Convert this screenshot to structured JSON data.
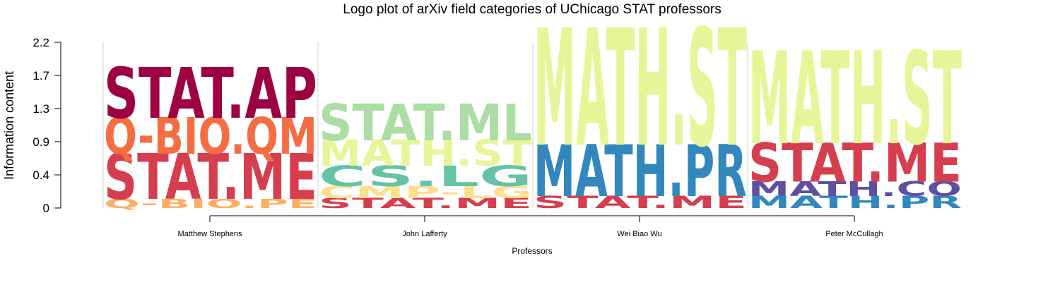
{
  "chart_data": {
    "type": "logo",
    "title": "Logo plot of arXiv field categories of UChicago STAT professors",
    "xlabel": "Professors",
    "ylabel": "Information content",
    "ylim": [
      0,
      2.2
    ],
    "yticks": [
      "0",
      "0.4",
      "0.9",
      "1.3",
      "1.7",
      "2.2"
    ],
    "ytick_values": [
      0,
      0.44,
      0.88,
      1.32,
      1.76,
      2.2
    ],
    "categories": [
      "Matthew Stephens",
      "John Lafferty",
      "Wei Biao Wu",
      "Peter McCullagh"
    ],
    "stacks": [
      [
        {
          "label": "Q-BIO.PE",
          "value": 0.12,
          "color": "#FDAE61"
        },
        {
          "label": "STAT.ME",
          "value": 0.6,
          "color": "#D53E4F"
        },
        {
          "label": "Q-BIO.QM",
          "value": 0.48,
          "color": "#F46D43"
        },
        {
          "label": "STAT.AP",
          "value": 0.67,
          "color": "#9E0142"
        }
      ],
      [
        {
          "label": "STAT.ME",
          "value": 0.13,
          "color": "#D53E4F"
        },
        {
          "label": "CMP-LG",
          "value": 0.16,
          "color": "#FEE08B"
        },
        {
          "label": "CS.LG",
          "value": 0.27,
          "color": "#66C2A5"
        },
        {
          "label": "MATH.ST",
          "value": 0.34,
          "color": "#E6F598"
        },
        {
          "label": "STAT.ML",
          "value": 0.48,
          "color": "#ABDDA4"
        }
      ],
      [
        {
          "label": "STAT.ME",
          "value": 0.16,
          "color": "#D53E4F"
        },
        {
          "label": "MATH.PR",
          "value": 0.68,
          "color": "#3288BD"
        },
        {
          "label": "MATH.ST",
          "value": 1.54,
          "color": "#E6F598"
        }
      ],
      [
        {
          "label": "MATH.PR",
          "value": 0.16,
          "color": "#3288BD"
        },
        {
          "label": "MATH.CO",
          "value": 0.19,
          "color": "#5E4FA2"
        },
        {
          "label": "STAT.ME",
          "value": 0.51,
          "color": "#D53E4F"
        },
        {
          "label": "MATH.ST",
          "value": 1.22,
          "color": "#E6F598"
        }
      ]
    ],
    "grid": false
  }
}
